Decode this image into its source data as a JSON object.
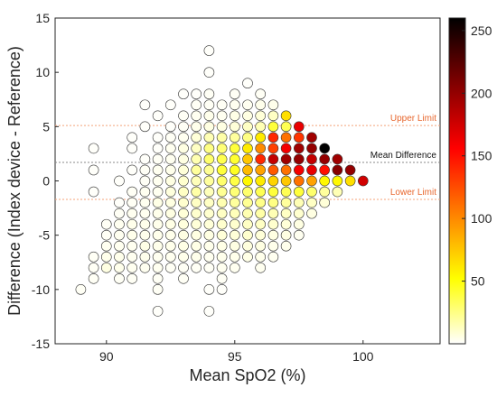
{
  "chart_data": {
    "type": "scatter",
    "subtype": "bland-altman density bubble plot",
    "title": "",
    "xlabel": "Mean SpO2 (%)",
    "ylabel": "Difference (Index device - Reference)",
    "xlim": [
      88,
      103
    ],
    "ylim": [
      -15,
      15
    ],
    "x_ticks": [
      90,
      95,
      100
    ],
    "y_ticks": [
      -15,
      -10,
      -5,
      0,
      5,
      10,
      15
    ],
    "grid": false,
    "colorbar": {
      "range": [
        0,
        260
      ],
      "ticks": [
        50,
        100,
        150,
        200,
        250
      ],
      "colormap": "hot (reversed)",
      "stops": [
        "#ffffff",
        "#ffff00",
        "#ff8000",
        "#ff0000",
        "#800000",
        "#000000"
      ]
    },
    "reference_lines": [
      {
        "label": "Upper Limit",
        "y": 5.1,
        "color": "#f4a37a",
        "style": "dotted"
      },
      {
        "label": "Mean Difference",
        "y": 1.7,
        "color": "#8a8a8a",
        "style": "dotted"
      },
      {
        "label": "Lower Limit",
        "y": -1.7,
        "color": "#f4a37a",
        "style": "dotted"
      }
    ],
    "points": [
      [
        89.0,
        -10,
        2
      ],
      [
        89.5,
        3,
        1
      ],
      [
        89.5,
        1,
        1
      ],
      [
        89.5,
        -1,
        1
      ],
      [
        89.5,
        -7,
        2
      ],
      [
        89.5,
        -8,
        2
      ],
      [
        89.5,
        -9,
        2
      ],
      [
        90.0,
        -4,
        2
      ],
      [
        90.0,
        -5,
        2
      ],
      [
        90.0,
        -6,
        3
      ],
      [
        90.0,
        -7,
        4
      ],
      [
        90.0,
        -8,
        6
      ],
      [
        90.5,
        0,
        1
      ],
      [
        90.5,
        -2,
        1
      ],
      [
        90.5,
        -3,
        2
      ],
      [
        90.5,
        -4,
        3
      ],
      [
        90.5,
        -5,
        3
      ],
      [
        90.5,
        -6,
        3
      ],
      [
        90.5,
        -7,
        4
      ],
      [
        90.5,
        -8,
        4
      ],
      [
        90.5,
        -9,
        2
      ],
      [
        91.0,
        4,
        1
      ],
      [
        91.0,
        3,
        1
      ],
      [
        91.0,
        1,
        1
      ],
      [
        91.0,
        -1,
        2
      ],
      [
        91.0,
        -2,
        2
      ],
      [
        91.0,
        -3,
        3
      ],
      [
        91.0,
        -4,
        4
      ],
      [
        91.0,
        -5,
        4
      ],
      [
        91.0,
        -6,
        3
      ],
      [
        91.0,
        -7,
        3
      ],
      [
        91.0,
        -8,
        3
      ],
      [
        91.0,
        -9,
        2
      ],
      [
        91.5,
        7,
        1
      ],
      [
        91.5,
        5,
        1
      ],
      [
        91.5,
        2,
        1
      ],
      [
        91.5,
        1,
        2
      ],
      [
        91.5,
        0,
        2
      ],
      [
        91.5,
        -1,
        3
      ],
      [
        91.5,
        -2,
        3
      ],
      [
        91.5,
        -3,
        3
      ],
      [
        91.5,
        -4,
        4
      ],
      [
        91.5,
        -5,
        4
      ],
      [
        91.5,
        -6,
        5
      ],
      [
        91.5,
        -7,
        4
      ],
      [
        91.5,
        -8,
        3
      ],
      [
        92.0,
        6,
        1
      ],
      [
        92.0,
        4,
        1
      ],
      [
        92.0,
        3,
        1
      ],
      [
        92.0,
        2,
        2
      ],
      [
        92.0,
        1,
        3
      ],
      [
        92.0,
        0,
        3
      ],
      [
        92.0,
        -1,
        3
      ],
      [
        92.0,
        -2,
        5
      ],
      [
        92.0,
        -3,
        4
      ],
      [
        92.0,
        -4,
        4
      ],
      [
        92.0,
        -5,
        4
      ],
      [
        92.0,
        -6,
        4
      ],
      [
        92.0,
        -7,
        3
      ],
      [
        92.0,
        -8,
        3
      ],
      [
        92.0,
        -9,
        2
      ],
      [
        92.0,
        -10,
        2
      ],
      [
        92.0,
        -12,
        1
      ],
      [
        92.5,
        7,
        1
      ],
      [
        92.5,
        5,
        1
      ],
      [
        92.5,
        4,
        2
      ],
      [
        92.5,
        3,
        3
      ],
      [
        92.5,
        2,
        3
      ],
      [
        92.5,
        1,
        4
      ],
      [
        92.5,
        0,
        6
      ],
      [
        92.5,
        -1,
        7
      ],
      [
        92.5,
        -2,
        6
      ],
      [
        92.5,
        -3,
        6
      ],
      [
        92.5,
        -4,
        5
      ],
      [
        92.5,
        -5,
        4
      ],
      [
        92.5,
        -6,
        4
      ],
      [
        92.5,
        -7,
        3
      ],
      [
        92.5,
        -8,
        2
      ],
      [
        93.0,
        8,
        1
      ],
      [
        93.0,
        6,
        2
      ],
      [
        93.0,
        5,
        2
      ],
      [
        93.0,
        4,
        3
      ],
      [
        93.0,
        3,
        6
      ],
      [
        93.0,
        2,
        6
      ],
      [
        93.0,
        1,
        8
      ],
      [
        93.0,
        0,
        10
      ],
      [
        93.0,
        -1,
        12
      ],
      [
        93.0,
        -2,
        10
      ],
      [
        93.0,
        -3,
        8
      ],
      [
        93.0,
        -4,
        7
      ],
      [
        93.0,
        -5,
        6
      ],
      [
        93.0,
        -6,
        5
      ],
      [
        93.0,
        -7,
        4
      ],
      [
        93.0,
        -8,
        2
      ],
      [
        93.0,
        -9,
        2
      ],
      [
        93.5,
        8,
        1
      ],
      [
        93.5,
        7,
        2
      ],
      [
        93.5,
        6,
        3
      ],
      [
        93.5,
        5,
        4
      ],
      [
        93.5,
        4,
        8
      ],
      [
        93.5,
        3,
        12
      ],
      [
        93.5,
        2,
        16
      ],
      [
        93.5,
        1,
        20
      ],
      [
        93.5,
        0,
        14
      ],
      [
        93.5,
        -1,
        18
      ],
      [
        93.5,
        -2,
        12
      ],
      [
        93.5,
        -3,
        10
      ],
      [
        93.5,
        -4,
        8
      ],
      [
        93.5,
        -5,
        6
      ],
      [
        93.5,
        -6,
        5
      ],
      [
        93.5,
        -7,
        4
      ],
      [
        93.5,
        -8,
        2
      ],
      [
        94.0,
        12,
        1
      ],
      [
        94.0,
        10,
        1
      ],
      [
        94.0,
        8,
        2
      ],
      [
        94.0,
        7,
        2
      ],
      [
        94.0,
        6,
        4
      ],
      [
        94.0,
        5,
        6
      ],
      [
        94.0,
        4,
        15
      ],
      [
        94.0,
        3,
        25
      ],
      [
        94.0,
        2,
        30
      ],
      [
        94.0,
        1,
        22
      ],
      [
        94.0,
        0,
        20
      ],
      [
        94.0,
        -1,
        14
      ],
      [
        94.0,
        -2,
        12
      ],
      [
        94.0,
        -3,
        10
      ],
      [
        94.0,
        -4,
        8
      ],
      [
        94.0,
        -5,
        6
      ],
      [
        94.0,
        -6,
        4
      ],
      [
        94.0,
        -7,
        3
      ],
      [
        94.0,
        -8,
        2
      ],
      [
        94.0,
        -10,
        1
      ],
      [
        94.0,
        -12,
        1
      ],
      [
        94.5,
        7,
        2
      ],
      [
        94.5,
        6,
        3
      ],
      [
        94.5,
        5,
        6
      ],
      [
        94.5,
        4,
        18
      ],
      [
        94.5,
        3,
        28
      ],
      [
        94.5,
        2,
        36
      ],
      [
        94.5,
        1,
        40
      ],
      [
        94.5,
        0,
        30
      ],
      [
        94.5,
        -1,
        22
      ],
      [
        94.5,
        -2,
        16
      ],
      [
        94.5,
        -3,
        12
      ],
      [
        94.5,
        -4,
        10
      ],
      [
        94.5,
        -5,
        8
      ],
      [
        94.5,
        -6,
        5
      ],
      [
        94.5,
        -7,
        4
      ],
      [
        94.5,
        -8,
        3
      ],
      [
        94.5,
        -9,
        2
      ],
      [
        94.5,
        -10,
        1
      ],
      [
        95.0,
        8,
        2
      ],
      [
        95.0,
        7,
        3
      ],
      [
        95.0,
        6,
        5
      ],
      [
        95.0,
        5,
        8
      ],
      [
        95.0,
        4,
        20
      ],
      [
        95.0,
        3,
        40
      ],
      [
        95.0,
        2,
        42
      ],
      [
        95.0,
        1,
        45
      ],
      [
        95.0,
        0,
        38
      ],
      [
        95.0,
        -1,
        28
      ],
      [
        95.0,
        -2,
        20
      ],
      [
        95.0,
        -3,
        14
      ],
      [
        95.0,
        -4,
        10
      ],
      [
        95.0,
        -5,
        8
      ],
      [
        95.0,
        -6,
        6
      ],
      [
        95.0,
        -7,
        4
      ],
      [
        95.0,
        -8,
        3
      ],
      [
        95.5,
        9,
        1
      ],
      [
        95.5,
        7,
        3
      ],
      [
        95.5,
        6,
        6
      ],
      [
        95.5,
        5,
        12
      ],
      [
        95.5,
        4,
        25
      ],
      [
        95.5,
        3,
        60
      ],
      [
        95.5,
        2,
        75
      ],
      [
        95.5,
        1,
        80
      ],
      [
        95.5,
        0,
        55
      ],
      [
        95.5,
        -1,
        30
      ],
      [
        95.5,
        -2,
        22
      ],
      [
        95.5,
        -3,
        16
      ],
      [
        95.5,
        -4,
        12
      ],
      [
        95.5,
        -5,
        10
      ],
      [
        95.5,
        -6,
        7
      ],
      [
        95.5,
        -7,
        5
      ],
      [
        96.0,
        8,
        2
      ],
      [
        96.0,
        7,
        4
      ],
      [
        96.0,
        6,
        8
      ],
      [
        96.0,
        5,
        15
      ],
      [
        96.0,
        4,
        60
      ],
      [
        96.0,
        3,
        100
      ],
      [
        96.0,
        2,
        140
      ],
      [
        96.0,
        1,
        90
      ],
      [
        96.0,
        0,
        60
      ],
      [
        96.0,
        -1,
        35
      ],
      [
        96.0,
        -2,
        24
      ],
      [
        96.0,
        -3,
        18
      ],
      [
        96.0,
        -4,
        12
      ],
      [
        96.0,
        -5,
        8
      ],
      [
        96.0,
        -6,
        6
      ],
      [
        96.0,
        -7,
        4
      ],
      [
        96.0,
        -8,
        3
      ],
      [
        96.5,
        7,
        4
      ],
      [
        96.5,
        6,
        12
      ],
      [
        96.5,
        5,
        40
      ],
      [
        96.5,
        4,
        140
      ],
      [
        96.5,
        3,
        130
      ],
      [
        96.5,
        2,
        180
      ],
      [
        96.5,
        1,
        120
      ],
      [
        96.5,
        0,
        70
      ],
      [
        96.5,
        -1,
        40
      ],
      [
        96.5,
        -2,
        25
      ],
      [
        96.5,
        -3,
        15
      ],
      [
        96.5,
        -4,
        10
      ],
      [
        96.5,
        -5,
        6
      ],
      [
        96.5,
        -6,
        4
      ],
      [
        96.5,
        -7,
        3
      ],
      [
        97.0,
        6,
        65
      ],
      [
        97.0,
        5,
        35
      ],
      [
        97.0,
        4,
        110
      ],
      [
        97.0,
        3,
        160
      ],
      [
        97.0,
        2,
        195
      ],
      [
        97.0,
        1,
        110
      ],
      [
        97.0,
        0,
        75
      ],
      [
        97.0,
        -1,
        35
      ],
      [
        97.0,
        -2,
        20
      ],
      [
        97.0,
        -3,
        12
      ],
      [
        97.0,
        -4,
        8
      ],
      [
        97.0,
        -5,
        6
      ],
      [
        97.0,
        -6,
        4
      ],
      [
        97.5,
        5,
        165
      ],
      [
        97.5,
        4,
        135
      ],
      [
        97.5,
        3,
        195
      ],
      [
        97.5,
        2,
        200
      ],
      [
        97.5,
        1,
        160
      ],
      [
        97.5,
        0,
        110
      ],
      [
        97.5,
        -1,
        40
      ],
      [
        97.5,
        -2,
        15
      ],
      [
        97.5,
        -3,
        10
      ],
      [
        97.5,
        -4,
        6
      ],
      [
        97.5,
        -5,
        3
      ],
      [
        98.0,
        4,
        195
      ],
      [
        98.0,
        3,
        200
      ],
      [
        98.0,
        2,
        180
      ],
      [
        98.0,
        1,
        165
      ],
      [
        98.0,
        0,
        90
      ],
      [
        98.0,
        -1,
        30
      ],
      [
        98.0,
        -2,
        12
      ],
      [
        98.0,
        -3,
        6
      ],
      [
        98.5,
        3,
        260
      ],
      [
        98.5,
        2,
        200
      ],
      [
        98.5,
        1,
        150
      ],
      [
        98.5,
        0,
        55
      ],
      [
        98.5,
        -1,
        20
      ],
      [
        98.5,
        -2,
        8
      ],
      [
        99.0,
        2,
        195
      ],
      [
        99.0,
        1,
        205
      ],
      [
        99.0,
        0,
        55
      ],
      [
        99.0,
        -1,
        15
      ],
      [
        99.5,
        1,
        200
      ],
      [
        99.5,
        0,
        65
      ],
      [
        100.0,
        0,
        175
      ]
    ]
  }
}
